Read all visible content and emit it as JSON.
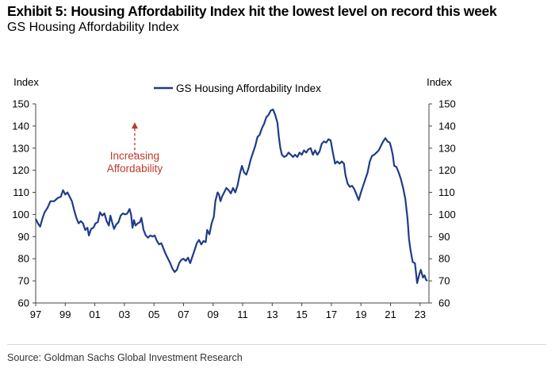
{
  "header": {
    "title": "Exhibit 5: Housing Affordability Index hit the lowest level on record this week",
    "subtitle": "GS Housing Affordability Index"
  },
  "footer": {
    "source": "Source: Goldman Sachs Global Investment Research"
  },
  "chart_data": {
    "type": "line",
    "left_axis_label": "Index",
    "right_axis_label": "Index",
    "ylim": [
      60,
      150
    ],
    "yticks": [
      60,
      70,
      80,
      90,
      100,
      110,
      120,
      130,
      140,
      150
    ],
    "xlim": [
      1997,
      2023.6
    ],
    "xticks": [
      {
        "x": 1997,
        "label": "97"
      },
      {
        "x": 1999,
        "label": "99"
      },
      {
        "x": 2001,
        "label": "01"
      },
      {
        "x": 2003,
        "label": "03"
      },
      {
        "x": 2005,
        "label": "05"
      },
      {
        "x": 2007,
        "label": "07"
      },
      {
        "x": 2009,
        "label": "09"
      },
      {
        "x": 2011,
        "label": "11"
      },
      {
        "x": 2013,
        "label": "13"
      },
      {
        "x": 2015,
        "label": "15"
      },
      {
        "x": 2017,
        "label": "17"
      },
      {
        "x": 2019,
        "label": "19"
      },
      {
        "x": 2021,
        "label": "21"
      },
      {
        "x": 2023,
        "label": "23"
      }
    ],
    "legend": "top-center",
    "grid": false,
    "annotation": {
      "lines": [
        "Increasing",
        "Affordability"
      ],
      "x": 2003.7,
      "arrow_from": 127,
      "arrow_to": 141,
      "color": "#c0392b"
    },
    "series": [
      {
        "name": "GS Housing Affordability Index",
        "color": "#1f3c88",
        "points": [
          [
            1997.0,
            98
          ],
          [
            1997.15,
            96
          ],
          [
            1997.3,
            94.5
          ],
          [
            1997.45,
            98
          ],
          [
            1997.6,
            101
          ],
          [
            1997.8,
            103
          ],
          [
            1998.0,
            106
          ],
          [
            1998.25,
            106
          ],
          [
            1998.5,
            107.5
          ],
          [
            1998.7,
            108
          ],
          [
            1998.85,
            111
          ],
          [
            1999.0,
            109
          ],
          [
            1999.15,
            110
          ],
          [
            1999.3,
            108
          ],
          [
            1999.45,
            106
          ],
          [
            1999.6,
            102
          ],
          [
            1999.75,
            98.5
          ],
          [
            1999.9,
            96
          ],
          [
            2000.05,
            97
          ],
          [
            2000.2,
            96
          ],
          [
            2000.35,
            93
          ],
          [
            2000.5,
            94
          ],
          [
            2000.6,
            90.5
          ],
          [
            2000.75,
            93.5
          ],
          [
            2000.9,
            94
          ],
          [
            2001.05,
            96
          ],
          [
            2001.2,
            96.5
          ],
          [
            2001.35,
            101
          ],
          [
            2001.5,
            99.5
          ],
          [
            2001.65,
            100.5
          ],
          [
            2001.8,
            97
          ],
          [
            2001.95,
            95
          ],
          [
            2002.05,
            99.5
          ],
          [
            2002.15,
            97
          ],
          [
            2002.3,
            93.5
          ],
          [
            2002.45,
            95.5
          ],
          [
            2002.6,
            96.5
          ],
          [
            2002.75,
            99.5
          ],
          [
            2002.9,
            100.5
          ],
          [
            2003.05,
            100
          ],
          [
            2003.2,
            100.5
          ],
          [
            2003.35,
            102.5
          ],
          [
            2003.45,
            100
          ],
          [
            2003.55,
            94
          ],
          [
            2003.65,
            97.5
          ],
          [
            2003.75,
            95
          ],
          [
            2003.9,
            96
          ],
          [
            2004.05,
            96.5
          ],
          [
            2004.15,
            98.5
          ],
          [
            2004.3,
            93
          ],
          [
            2004.45,
            90.5
          ],
          [
            2004.6,
            89.5
          ],
          [
            2004.75,
            90.5
          ],
          [
            2004.9,
            90
          ],
          [
            2005.05,
            90.5
          ],
          [
            2005.2,
            88
          ],
          [
            2005.35,
            86.5
          ],
          [
            2005.5,
            87
          ],
          [
            2005.65,
            84.5
          ],
          [
            2005.8,
            82
          ],
          [
            2005.95,
            80
          ],
          [
            2006.1,
            78
          ],
          [
            2006.25,
            75.5
          ],
          [
            2006.4,
            74
          ],
          [
            2006.55,
            75
          ],
          [
            2006.7,
            78
          ],
          [
            2006.85,
            79.5
          ],
          [
            2007.0,
            80
          ],
          [
            2007.15,
            79
          ],
          [
            2007.3,
            80.5
          ],
          [
            2007.45,
            78
          ],
          [
            2007.6,
            81
          ],
          [
            2007.75,
            84
          ],
          [
            2007.9,
            87
          ],
          [
            2008.05,
            88.5
          ],
          [
            2008.2,
            86.5
          ],
          [
            2008.35,
            88
          ],
          [
            2008.5,
            87.5
          ],
          [
            2008.6,
            93
          ],
          [
            2008.75,
            91
          ],
          [
            2008.9,
            96
          ],
          [
            2009.05,
            99
          ],
          [
            2009.15,
            106
          ],
          [
            2009.3,
            110
          ],
          [
            2009.4,
            109
          ],
          [
            2009.5,
            106
          ],
          [
            2009.6,
            108
          ],
          [
            2009.75,
            110
          ],
          [
            2009.9,
            112
          ],
          [
            2010.05,
            111
          ],
          [
            2010.2,
            109.5
          ],
          [
            2010.35,
            112
          ],
          [
            2010.5,
            110
          ],
          [
            2010.65,
            113
          ],
          [
            2010.8,
            118
          ],
          [
            2010.95,
            122
          ],
          [
            2011.1,
            119
          ],
          [
            2011.25,
            118
          ],
          [
            2011.4,
            121
          ],
          [
            2011.55,
            125
          ],
          [
            2011.7,
            128
          ],
          [
            2011.85,
            131
          ],
          [
            2012.0,
            135
          ],
          [
            2012.15,
            136
          ],
          [
            2012.3,
            139
          ],
          [
            2012.45,
            141
          ],
          [
            2012.6,
            144
          ],
          [
            2012.75,
            145
          ],
          [
            2012.9,
            147
          ],
          [
            2013.05,
            147.5
          ],
          [
            2013.2,
            145
          ],
          [
            2013.35,
            141.5
          ],
          [
            2013.45,
            135
          ],
          [
            2013.55,
            130
          ],
          [
            2013.65,
            127
          ],
          [
            2013.8,
            126
          ],
          [
            2013.95,
            126.5
          ],
          [
            2014.1,
            128
          ],
          [
            2014.25,
            127
          ],
          [
            2014.4,
            126
          ],
          [
            2014.55,
            127
          ],
          [
            2014.7,
            126
          ],
          [
            2014.85,
            128
          ],
          [
            2015.0,
            127
          ],
          [
            2015.15,
            129
          ],
          [
            2015.3,
            128
          ],
          [
            2015.45,
            129.5
          ],
          [
            2015.6,
            130
          ],
          [
            2015.75,
            127
          ],
          [
            2015.9,
            129
          ],
          [
            2016.05,
            127
          ],
          [
            2016.2,
            128.5
          ],
          [
            2016.35,
            132
          ],
          [
            2016.5,
            133
          ],
          [
            2016.65,
            132.5
          ],
          [
            2016.8,
            134
          ],
          [
            2016.95,
            133.5
          ],
          [
            2017.1,
            128
          ],
          [
            2017.25,
            123
          ],
          [
            2017.4,
            124
          ],
          [
            2017.55,
            123
          ],
          [
            2017.7,
            124
          ],
          [
            2017.85,
            123
          ],
          [
            2017.95,
            118
          ],
          [
            2018.1,
            114
          ],
          [
            2018.25,
            112.5
          ],
          [
            2018.4,
            113
          ],
          [
            2018.55,
            111.5
          ],
          [
            2018.7,
            109
          ],
          [
            2018.85,
            106.5
          ],
          [
            2019.0,
            110
          ],
          [
            2019.15,
            113
          ],
          [
            2019.3,
            116
          ],
          [
            2019.45,
            119
          ],
          [
            2019.6,
            124
          ],
          [
            2019.75,
            126.5
          ],
          [
            2019.9,
            127
          ],
          [
            2020.05,
            128
          ],
          [
            2020.2,
            129
          ],
          [
            2020.35,
            131
          ],
          [
            2020.5,
            133
          ],
          [
            2020.65,
            134.5
          ],
          [
            2020.8,
            133
          ],
          [
            2020.95,
            132.5
          ],
          [
            2021.05,
            130
          ],
          [
            2021.15,
            127
          ],
          [
            2021.25,
            122
          ],
          [
            2021.4,
            121.5
          ],
          [
            2021.55,
            119
          ],
          [
            2021.7,
            116
          ],
          [
            2021.85,
            112
          ],
          [
            2022.0,
            107
          ],
          [
            2022.15,
            98
          ],
          [
            2022.25,
            89
          ],
          [
            2022.35,
            84
          ],
          [
            2022.5,
            78.5
          ],
          [
            2022.65,
            78
          ],
          [
            2022.8,
            69
          ],
          [
            2022.95,
            73
          ],
          [
            2023.05,
            75
          ],
          [
            2023.2,
            71.5
          ],
          [
            2023.3,
            72.5
          ],
          [
            2023.4,
            70.5
          ],
          [
            2023.5,
            70
          ]
        ]
      }
    ]
  }
}
